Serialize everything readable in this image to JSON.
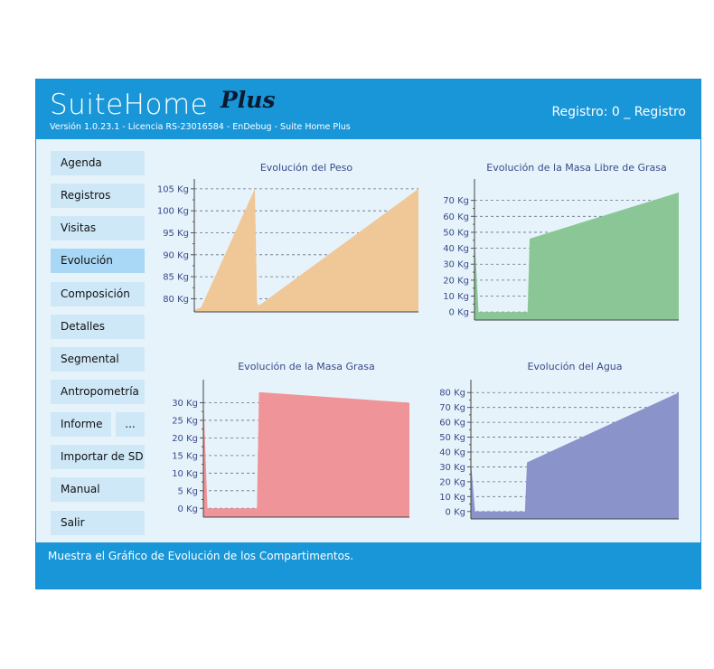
{
  "header": {
    "title": "SuiteHome",
    "title_suffix": "Plus",
    "version_line": "Versión 1.0.23.1 - Licencia RS-23016584 - EnDebug - Suite Home Plus",
    "registro_status": "Registro: 0  _ Registro"
  },
  "sidebar": {
    "items": [
      {
        "label": "Agenda"
      },
      {
        "label": "Registros"
      },
      {
        "label": "Visitas"
      },
      {
        "label": "Evolución"
      },
      {
        "label": "Composición"
      },
      {
        "label": "Detalles"
      },
      {
        "label": "Segmental"
      },
      {
        "label": "Antropometría"
      },
      {
        "label": "Informe"
      },
      {
        "label": "Importar de SD"
      },
      {
        "label": "Manual"
      },
      {
        "label": "Salir"
      }
    ],
    "more_label": "...",
    "active": "Evolución"
  },
  "footer": {
    "message": "Muestra el Gráfico de Evolución de los Compartimentos."
  },
  "chart_data": [
    {
      "type": "area",
      "title": "Evolución del Peso",
      "y_ticks": [
        "80 Kg",
        "85 Kg",
        "90 Kg",
        "95 Kg",
        "100 Kg",
        "105 Kg"
      ],
      "ylim": [
        77,
        106
      ],
      "grid": "horizontal dashed",
      "x": [
        0,
        0.03,
        0.27,
        0.28,
        0.29,
        1
      ],
      "values": [
        77.5,
        78,
        105,
        79,
        78.5,
        105
      ],
      "color": "#f0c797"
    },
    {
      "type": "area",
      "title": "Evolución de la Masa Libre de Grasa",
      "y_ticks": [
        "0 Kg",
        "10 Kg",
        "20 Kg",
        "30 Kg",
        "40 Kg",
        "50 Kg",
        "60 Kg",
        "70 Kg"
      ],
      "ylim": [
        -5,
        80
      ],
      "grid": "horizontal dashed",
      "x": [
        0,
        0.02,
        0.03,
        0.26,
        0.27,
        1
      ],
      "values": [
        47,
        0,
        0,
        0,
        46,
        75
      ],
      "color": "#8bc796"
    },
    {
      "type": "area",
      "title": "Evolución de la Masa Grasa",
      "y_ticks": [
        "0 Kg",
        "5 Kg",
        "10 Kg",
        "15 Kg",
        "20 Kg",
        "25 Kg",
        "30 Kg"
      ],
      "ylim": [
        -2.5,
        35
      ],
      "grid": "horizontal dashed",
      "x": [
        0,
        0.02,
        0.03,
        0.26,
        0.27,
        1
      ],
      "values": [
        32,
        0,
        0,
        0,
        33,
        30
      ],
      "color": "#ef9499"
    },
    {
      "type": "area",
      "title": "Evolución del Agua",
      "y_ticks": [
        "0 Kg",
        "10 Kg",
        "20 Kg",
        "30 Kg",
        "40 Kg",
        "50 Kg",
        "60 Kg",
        "70 Kg",
        "80 Kg"
      ],
      "ylim": [
        -5,
        85
      ],
      "grid": "horizontal dashed",
      "x": [
        0,
        0.02,
        0.03,
        0.26,
        0.27,
        1
      ],
      "values": [
        34,
        0,
        0,
        0,
        33,
        80
      ],
      "color": "#8a94cb"
    }
  ]
}
